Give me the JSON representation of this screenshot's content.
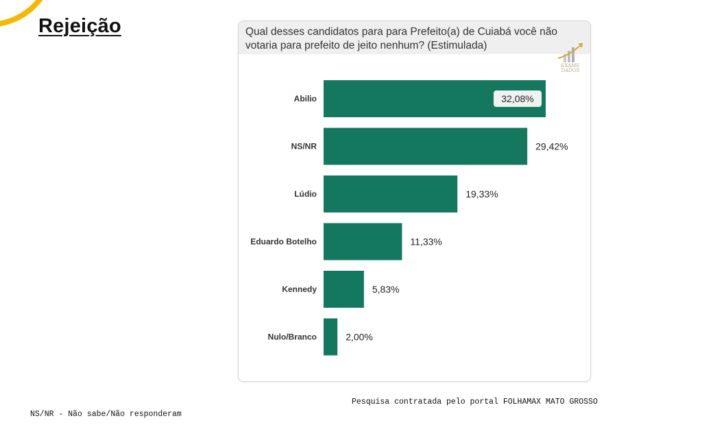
{
  "page": {
    "title": "Rejeição",
    "footer_note": "Pesquisa contratada pelo portal FOLHAMAX MATO GROSSO",
    "legend_note": "NS/NR - Não sabe/Não responderam"
  },
  "logo": {
    "text": "EXAME\nDADOS",
    "icon": "bar-growth-logo-icon"
  },
  "colors": {
    "bar": "#14785f",
    "accent_arc": "#f5b800",
    "header_bg": "#efefef"
  },
  "chart_data": {
    "type": "bar",
    "orientation": "horizontal",
    "title": "Qual desses candidatos para para Prefeito(a) de Cuiabá você não votaria para prefeito de jeito nenhum? (Estimulada)",
    "categories": [
      "Abilio",
      "NS/NR",
      "Lúdio",
      "Eduardo Botelho",
      "Kennedy",
      "Nulo/Branco"
    ],
    "values": [
      32.08,
      29.42,
      19.33,
      11.33,
      5.83,
      2.0
    ],
    "value_labels": [
      "32,08%",
      "29,42%",
      "19,33%",
      "11,33%",
      "5,83%",
      "2,00%"
    ],
    "unit": "%",
    "xlim": [
      0,
      32.08
    ],
    "grid": false,
    "legend": false
  }
}
